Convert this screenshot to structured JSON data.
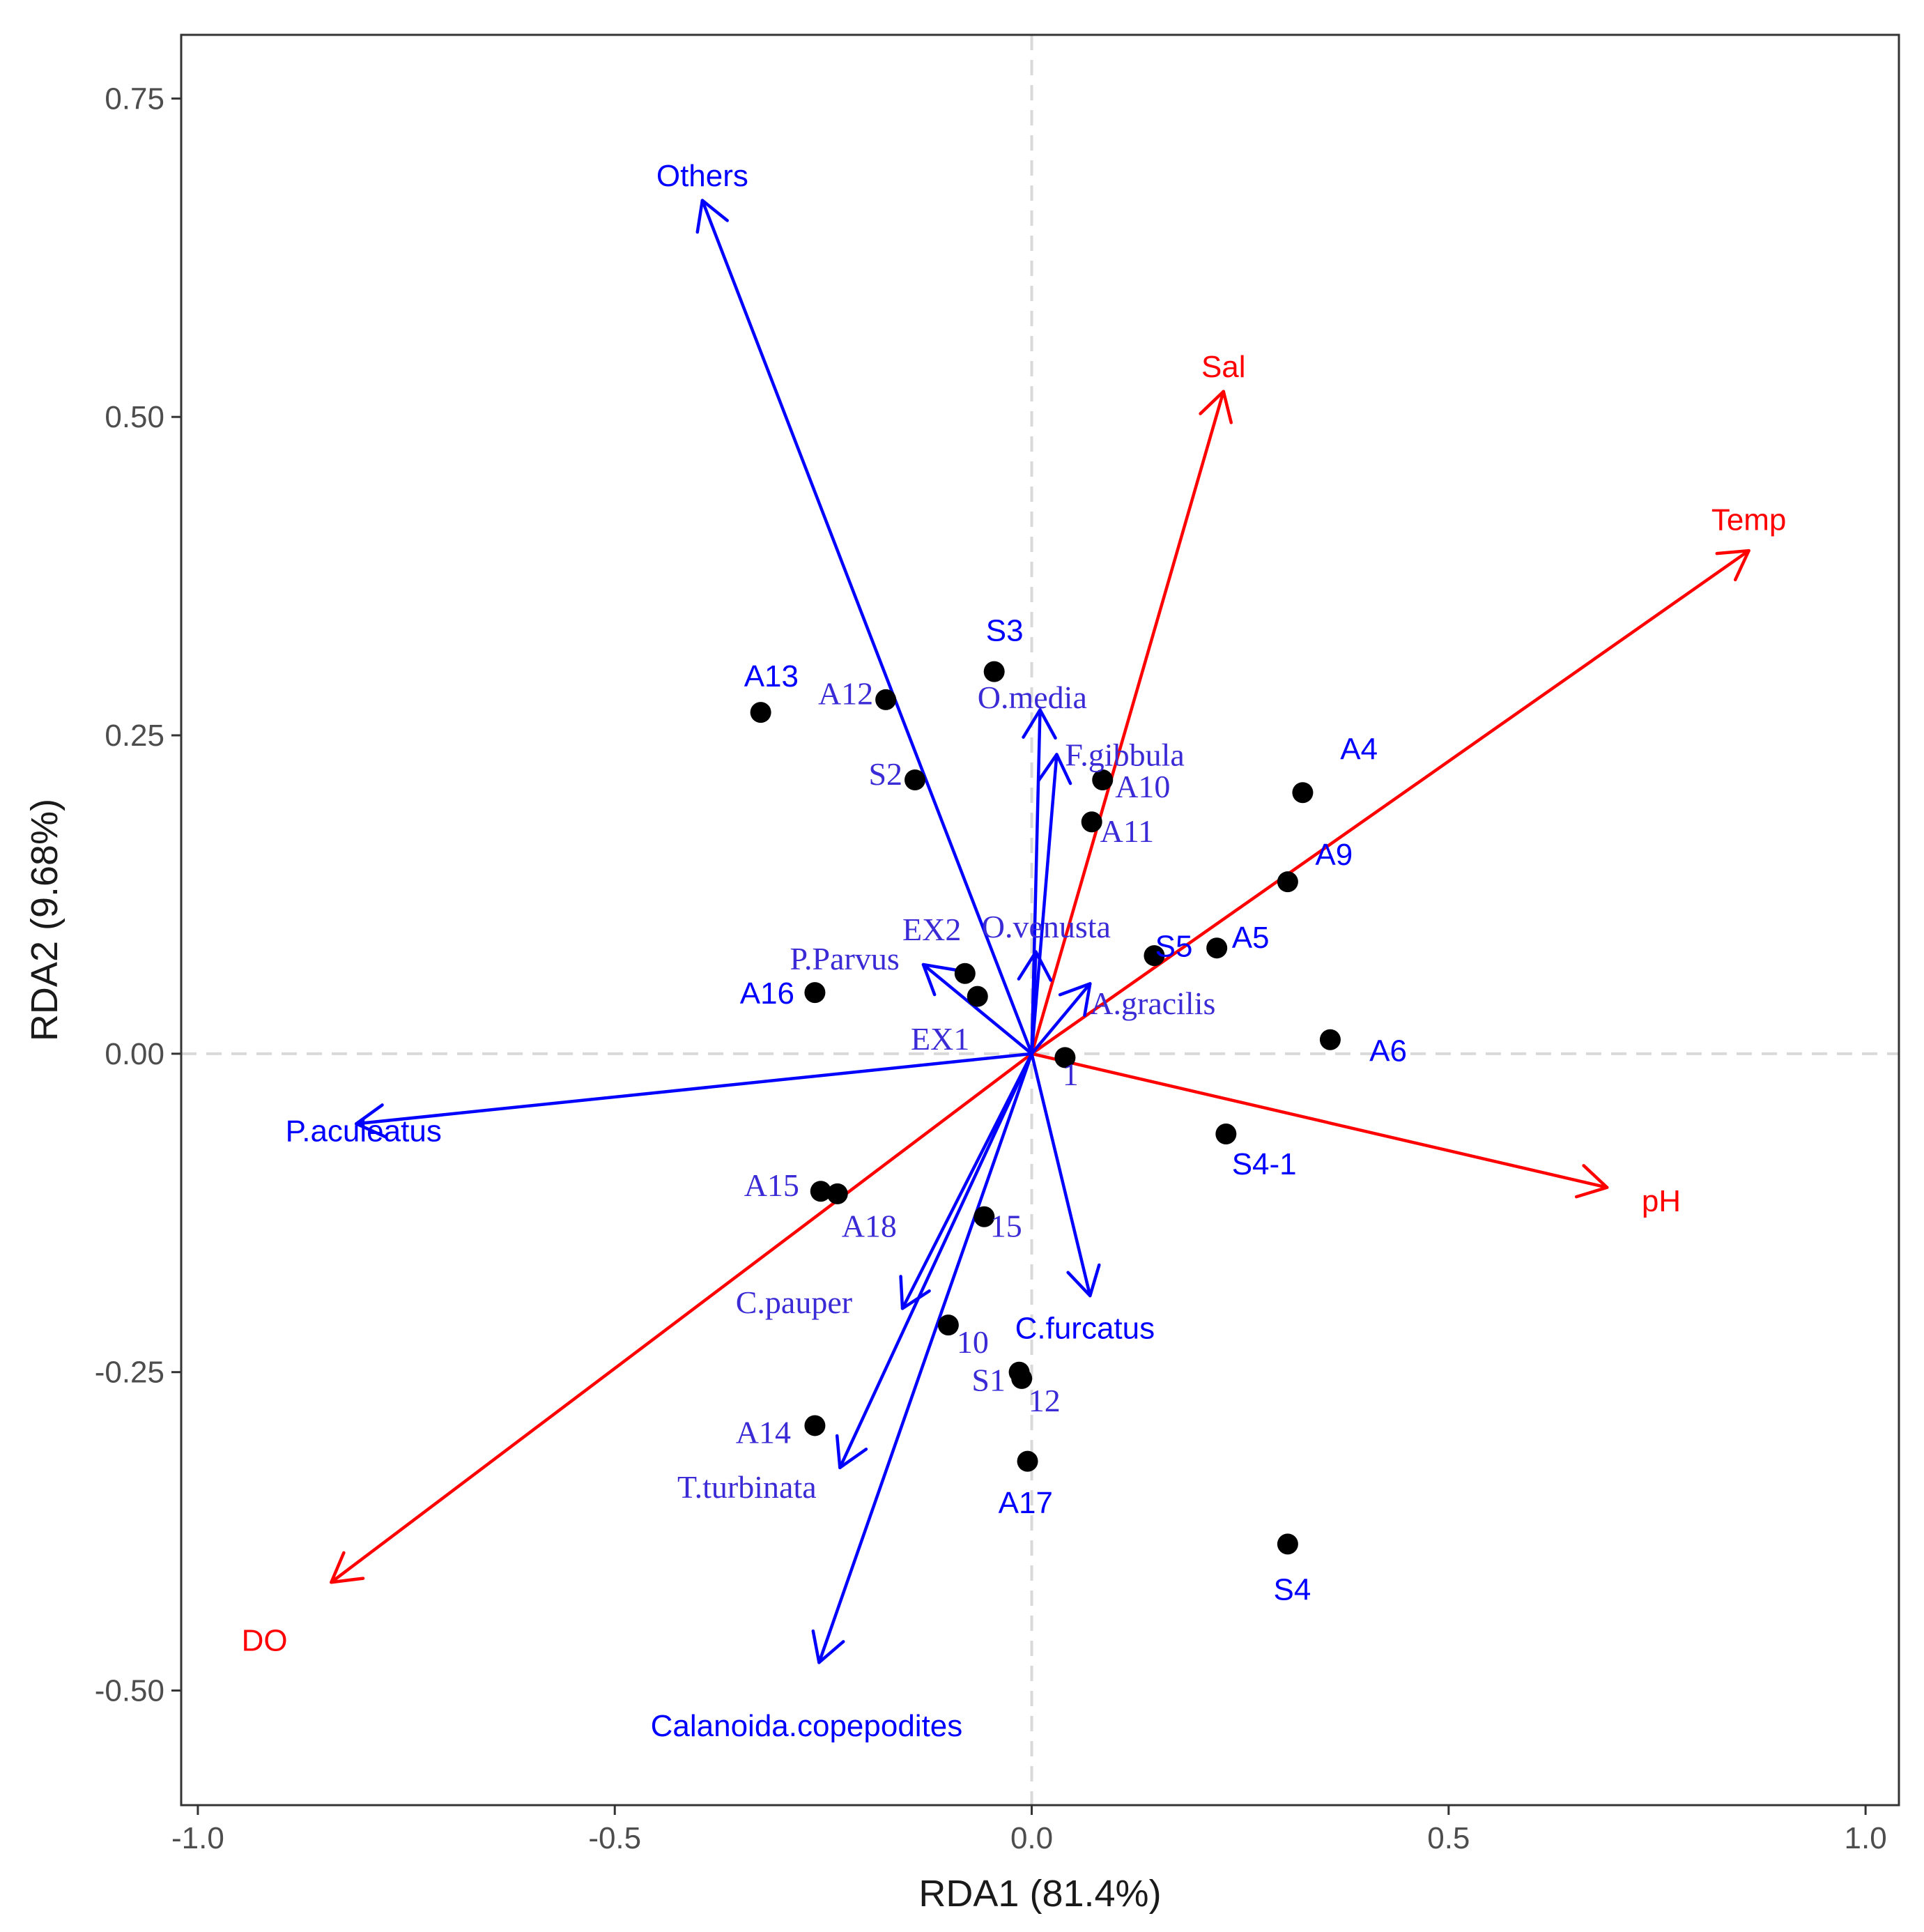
{
  "chart_data": {
    "type": "scatter",
    "subtype": "RDA biplot",
    "title": "",
    "xlabel": "RDA1 (81.4%)",
    "ylabel": "RDA2 (9.68%)",
    "xlim": [
      -1.02,
      1.04
    ],
    "ylim": [
      -0.59,
      0.8
    ],
    "x_ticks": [
      -1.0,
      -0.5,
      0.0,
      0.5,
      1.0
    ],
    "x_tick_labels": [
      "-1.0",
      "-0.5",
      "0.0",
      "0.5",
      "1.0"
    ],
    "y_ticks": [
      -0.5,
      -0.25,
      0.0,
      0.25,
      0.5,
      0.75
    ],
    "y_tick_labels": [
      "-0.50",
      "-0.25",
      "0.00",
      "0.25",
      "0.50",
      "0.75"
    ],
    "grid": false,
    "reference_lines": "dashed at x=0 and y=0",
    "colors": {
      "environment": "#ff0000",
      "species": "#0000ff",
      "sites": "#000000",
      "sites_label": "#3a2bd6",
      "axis_frame": "#333333",
      "ref_line": "#d9d9d9"
    },
    "environment_arrows": [
      {
        "name": "Sal",
        "x": 0.23,
        "y": 0.52,
        "label": "Sal",
        "label_x": 0.23,
        "label_y": 0.54
      },
      {
        "name": "Temp",
        "x": 0.86,
        "y": 0.395,
        "label": "Temp",
        "label_x": 0.86,
        "label_y": 0.42
      },
      {
        "name": "pH",
        "x": 0.69,
        "y": -0.105,
        "label": "pH",
        "label_x": 0.755,
        "label_y": -0.115
      },
      {
        "name": "DO",
        "x": -0.84,
        "y": -0.415,
        "label": "DO",
        "label_x": -0.92,
        "label_y": -0.46
      }
    ],
    "species_arrows": [
      {
        "name": "Others",
        "x": -0.395,
        "y": 0.67,
        "font": "sans",
        "label": "Others",
        "label_x": -0.395,
        "label_y": 0.69,
        "anchor": "middle"
      },
      {
        "name": "O.media",
        "x": 0.01,
        "y": 0.27,
        "font": "serif",
        "label": "O.media",
        "label_x": -0.065,
        "label_y": 0.28,
        "anchor": "start"
      },
      {
        "name": "F.gibbula",
        "x": 0.03,
        "y": 0.235,
        "font": "serif",
        "label": "F.gibbula",
        "label_x": 0.04,
        "label_y": 0.235,
        "anchor": "start"
      },
      {
        "name": "O.venusta",
        "x": 0.005,
        "y": 0.08,
        "font": "serif",
        "label": "O.venusta",
        "label_x": -0.06,
        "label_y": 0.1,
        "anchor": "start"
      },
      {
        "name": "P.Parvus",
        "x": -0.13,
        "y": 0.07,
        "font": "serif",
        "label": "P.Parvus",
        "label_x": -0.29,
        "label_y": 0.075,
        "anchor": "start"
      },
      {
        "name": "A.gracilis",
        "x": 0.07,
        "y": 0.055,
        "font": "serif",
        "label": "A.gracilis",
        "label_x": 0.07,
        "label_y": 0.04,
        "anchor": "start"
      },
      {
        "name": "P.aculeatus",
        "x": -0.81,
        "y": -0.055,
        "font": "sans",
        "label": "P.aculeatus",
        "label_x": -0.895,
        "label_y": -0.06,
        "anchor": "start"
      },
      {
        "name": "C.pauper",
        "x": -0.155,
        "y": -0.2,
        "font": "serif",
        "label": "C.pauper",
        "label_x": -0.355,
        "label_y": -0.195,
        "anchor": "start"
      },
      {
        "name": "C.furcatus",
        "x": 0.07,
        "y": -0.19,
        "font": "sans",
        "label": "C.furcatus",
        "label_x": -0.02,
        "label_y": -0.215,
        "anchor": "start"
      },
      {
        "name": "T.turbinata",
        "x": -0.23,
        "y": -0.325,
        "font": "serif",
        "label": "T.turbinata",
        "label_x": -0.425,
        "label_y": -0.34,
        "anchor": "start"
      },
      {
        "name": "Calanoida.copepodites",
        "x": -0.255,
        "y": -0.478,
        "font": "sans",
        "label": "Calanoida.copepodites",
        "label_x": -0.27,
        "label_y": -0.527,
        "anchor": "middle"
      }
    ],
    "sites": [
      {
        "name": "S3",
        "x": -0.045,
        "y": 0.3,
        "label": "S3",
        "label_x": -0.055,
        "label_y": 0.333,
        "font": "sans"
      },
      {
        "name": "A13",
        "x": -0.325,
        "y": 0.268,
        "label": "A13",
        "label_x": -0.345,
        "label_y": 0.297,
        "font": "sans"
      },
      {
        "name": "A12",
        "x": -0.175,
        "y": 0.278,
        "label": "A12",
        "label_x": -0.19,
        "label_y": 0.283,
        "font": "serif",
        "anchor": "end"
      },
      {
        "name": "S2",
        "x": -0.14,
        "y": 0.215,
        "label": "S2",
        "label_x": -0.155,
        "label_y": 0.22,
        "font": "serif",
        "anchor": "end"
      },
      {
        "name": "A10",
        "x": 0.085,
        "y": 0.215,
        "label": "A10",
        "label_x": 0.1,
        "label_y": 0.21,
        "font": "serif"
      },
      {
        "name": "A11",
        "x": 0.072,
        "y": 0.182,
        "label": "A11",
        "label_x": 0.082,
        "label_y": 0.175,
        "font": "serif"
      },
      {
        "name": "A4",
        "x": 0.325,
        "y": 0.205,
        "label": "A4",
        "label_x": 0.37,
        "label_y": 0.24,
        "font": "sans"
      },
      {
        "name": "A9",
        "x": 0.307,
        "y": 0.135,
        "label": "A9",
        "label_x": 0.34,
        "label_y": 0.157,
        "font": "sans"
      },
      {
        "name": "S5",
        "x": 0.147,
        "y": 0.077,
        "label": "S5",
        "label_x": 0.148,
        "label_y": 0.085,
        "font": "sans"
      },
      {
        "name": "A5",
        "x": 0.222,
        "y": 0.083,
        "label": "A5",
        "label_x": 0.24,
        "label_y": 0.092,
        "font": "sans"
      },
      {
        "name": "EX2",
        "x": -0.08,
        "y": 0.063,
        "label": "EX2",
        "label_x": -0.155,
        "label_y": 0.098,
        "font": "serif"
      },
      {
        "name": "EX1",
        "x": -0.065,
        "y": 0.045,
        "label": "EX1",
        "label_x": -0.145,
        "label_y": 0.012,
        "font": "serif"
      },
      {
        "name": "A16",
        "x": -0.26,
        "y": 0.048,
        "label": "A16",
        "label_x": -0.35,
        "label_y": 0.048,
        "font": "sans"
      },
      {
        "name": "A6",
        "x": 0.358,
        "y": 0.011,
        "label": "A6",
        "label_x": 0.405,
        "label_y": 0.003,
        "font": "sans"
      },
      {
        "name": "1",
        "x": 0.04,
        "y": -0.003,
        "label": "1",
        "label_x": 0.037,
        "label_y": -0.016,
        "font": "serif"
      },
      {
        "name": "S4-1",
        "x": 0.233,
        "y": -0.063,
        "label": "S4-1",
        "label_x": 0.24,
        "label_y": -0.086,
        "font": "sans"
      },
      {
        "name": "A15",
        "x": -0.253,
        "y": -0.108,
        "label": "A15",
        "label_x": -0.345,
        "label_y": -0.103,
        "font": "serif"
      },
      {
        "name": "A18",
        "x": -0.233,
        "y": -0.11,
        "label": "A18",
        "label_x": -0.228,
        "label_y": -0.135,
        "font": "serif"
      },
      {
        "name": "15",
        "x": -0.057,
        "y": -0.128,
        "label": "15",
        "label_x": -0.05,
        "label_y": -0.135,
        "font": "serif"
      },
      {
        "name": "10",
        "x": -0.1,
        "y": -0.213,
        "label": "10",
        "label_x": -0.09,
        "label_y": -0.226,
        "font": "serif"
      },
      {
        "name": "S1",
        "x": -0.015,
        "y": -0.25,
        "label": "S1",
        "label_x": -0.072,
        "label_y": -0.256,
        "font": "serif"
      },
      {
        "name": "12",
        "x": -0.012,
        "y": -0.255,
        "label": "12",
        "label_x": -0.004,
        "label_y": -0.272,
        "font": "serif"
      },
      {
        "name": "A14",
        "x": -0.26,
        "y": -0.292,
        "label": "A14",
        "label_x": -0.355,
        "label_y": -0.297,
        "font": "serif"
      },
      {
        "name": "A17",
        "x": -0.005,
        "y": -0.32,
        "label": "A17",
        "label_x": -0.04,
        "label_y": -0.352,
        "font": "sans"
      },
      {
        "name": "S4",
        "x": 0.307,
        "y": -0.385,
        "label": "S4",
        "label_x": 0.29,
        "label_y": -0.42,
        "font": "sans"
      }
    ]
  }
}
